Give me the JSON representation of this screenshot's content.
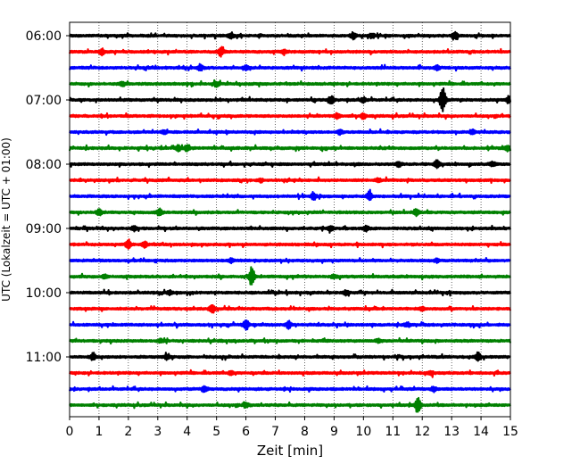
{
  "chart_data": {
    "type": "line",
    "title": "",
    "xlabel": "Zeit  [min]",
    "ylabel": "UTC (Lokalzeit = UTC + 01:00)",
    "xlim": [
      0,
      15
    ],
    "x_ticks": [
      0,
      1,
      2,
      3,
      4,
      5,
      6,
      7,
      8,
      9,
      10,
      11,
      12,
      13,
      14,
      15
    ],
    "y_tick_labels": [
      "06:00",
      "07:00",
      "08:00",
      "09:00",
      "10:00",
      "11:00"
    ],
    "grid": "x-dotted",
    "legend": "none",
    "colors": [
      "#000000",
      "#ff0000",
      "#0000ff",
      "#008000"
    ],
    "series": [
      {
        "start": "06:00",
        "events": [
          [
            5.5,
            0.35
          ],
          [
            9.65,
            0.45
          ],
          [
            10.3,
            0.35
          ],
          [
            13.1,
            0.45
          ]
        ]
      },
      {
        "start": "06:15",
        "events": [
          [
            1.1,
            0.4
          ],
          [
            5.15,
            0.55
          ],
          [
            7.3,
            0.3
          ]
        ]
      },
      {
        "start": "06:30",
        "events": [
          [
            4.45,
            0.4
          ],
          [
            6.0,
            0.3
          ],
          [
            12.5,
            0.3
          ]
        ]
      },
      {
        "start": "06:45",
        "events": [
          [
            1.8,
            0.3
          ],
          [
            5.0,
            0.25
          ]
        ]
      },
      {
        "start": "07:00",
        "events": [
          [
            8.9,
            0.5
          ],
          [
            10.0,
            0.35
          ],
          [
            12.7,
            1.8
          ],
          [
            14.95,
            0.5
          ]
        ]
      },
      {
        "start": "07:15",
        "events": [
          [
            9.1,
            0.35
          ],
          [
            10.0,
            0.35
          ]
        ]
      },
      {
        "start": "07:30",
        "events": [
          [
            3.2,
            0.25
          ],
          [
            9.2,
            0.3
          ],
          [
            13.7,
            0.3
          ]
        ]
      },
      {
        "start": "07:45",
        "events": [
          [
            3.7,
            0.35
          ],
          [
            4.0,
            0.4
          ],
          [
            14.9,
            0.3
          ]
        ]
      },
      {
        "start": "08:00",
        "events": [
          [
            11.2,
            0.35
          ],
          [
            12.5,
            0.5
          ],
          [
            14.4,
            0.3
          ]
        ]
      },
      {
        "start": "08:15",
        "events": [
          [
            6.5,
            0.25
          ],
          [
            10.5,
            0.25
          ]
        ]
      },
      {
        "start": "08:30",
        "events": [
          [
            8.3,
            0.5
          ],
          [
            10.2,
            0.6
          ]
        ]
      },
      {
        "start": "08:45",
        "events": [
          [
            1.0,
            0.4
          ],
          [
            3.05,
            0.5
          ],
          [
            11.8,
            0.5
          ]
        ]
      },
      {
        "start": "09:00",
        "events": [
          [
            2.2,
            0.3
          ],
          [
            8.9,
            0.3
          ],
          [
            10.1,
            0.35
          ]
        ]
      },
      {
        "start": "09:15",
        "events": [
          [
            2.0,
            0.6
          ],
          [
            2.55,
            0.4
          ]
        ]
      },
      {
        "start": "09:30",
        "events": [
          [
            5.5,
            0.25
          ],
          [
            12.5,
            0.25
          ]
        ]
      },
      {
        "start": "09:45",
        "events": [
          [
            6.2,
            1.4
          ],
          [
            1.2,
            0.25
          ],
          [
            9.0,
            0.25
          ]
        ]
      },
      {
        "start": "10:00",
        "events": [
          [
            3.4,
            0.3
          ],
          [
            9.4,
            0.3
          ]
        ]
      },
      {
        "start": "10:15",
        "events": [
          [
            4.85,
            0.55
          ],
          [
            12.0,
            0.25
          ]
        ]
      },
      {
        "start": "10:30",
        "events": [
          [
            6.0,
            0.65
          ],
          [
            7.45,
            0.45
          ],
          [
            11.5,
            0.25
          ]
        ]
      },
      {
        "start": "10:45",
        "events": [
          [
            3.1,
            0.25
          ],
          [
            10.5,
            0.25
          ]
        ]
      },
      {
        "start": "11:00",
        "events": [
          [
            0.8,
            0.45
          ],
          [
            3.3,
            0.3
          ],
          [
            13.9,
            0.55
          ]
        ]
      },
      {
        "start": "11:15",
        "events": [
          [
            5.5,
            0.25
          ],
          [
            12.3,
            0.25
          ]
        ]
      },
      {
        "start": "11:30",
        "events": [
          [
            4.6,
            0.35
          ],
          [
            12.4,
            0.3
          ]
        ]
      },
      {
        "start": "11:45",
        "events": [
          [
            6.0,
            0.35
          ],
          [
            11.85,
            1.2
          ]
        ]
      }
    ]
  }
}
